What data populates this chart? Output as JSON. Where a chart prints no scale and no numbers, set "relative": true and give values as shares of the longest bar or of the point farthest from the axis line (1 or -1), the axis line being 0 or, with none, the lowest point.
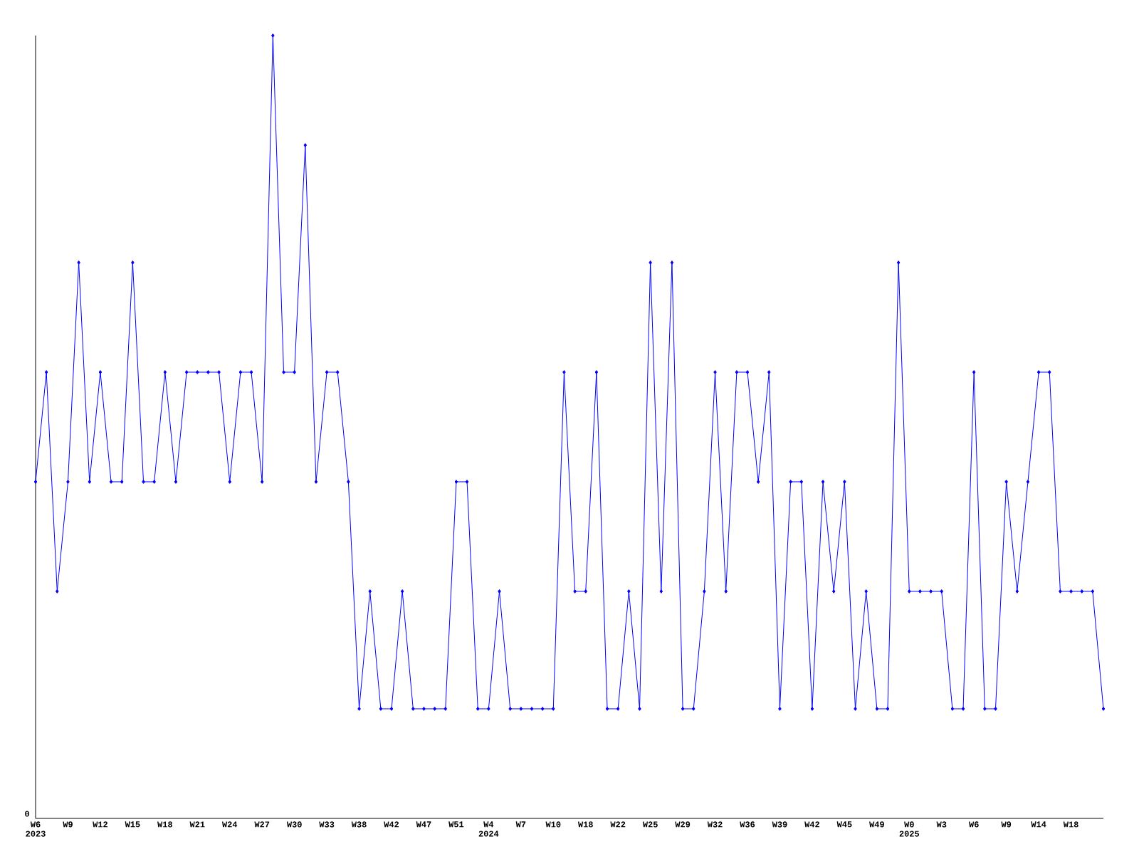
{
  "chart_data": {
    "type": "line",
    "relative": true,
    "color": "#0000ff",
    "marker": "diamond",
    "line_style": "solid",
    "grid": false,
    "categories": [
      "W6 2023",
      null,
      null,
      "W9",
      null,
      null,
      "W12",
      null,
      null,
      "W15",
      null,
      null,
      "W18",
      null,
      null,
      "W21",
      null,
      null,
      "W24",
      null,
      null,
      "W27",
      null,
      null,
      "W30",
      null,
      null,
      "W33",
      null,
      null,
      "W38",
      null,
      null,
      "W42",
      null,
      null,
      "W47",
      null,
      null,
      "W51",
      null,
      null,
      "W4 2024",
      null,
      null,
      "W7",
      null,
      null,
      "W10",
      null,
      null,
      "W18",
      null,
      null,
      "W22",
      null,
      null,
      "W25",
      null,
      null,
      "W29",
      null,
      null,
      "W32",
      null,
      null,
      "W36",
      null,
      null,
      "W39",
      null,
      null,
      "W42",
      null,
      null,
      "W45",
      null,
      null,
      "W49",
      null,
      null,
      "W0 2025",
      null,
      null,
      "W3",
      null,
      null,
      "W6",
      null,
      null,
      "W9",
      null,
      null,
      "W14",
      null,
      null,
      "W18",
      null,
      null,
      null
    ],
    "values": [
      0.43,
      0.57,
      0.29,
      0.43,
      0.71,
      0.43,
      0.57,
      0.43,
      0.43,
      0.71,
      0.43,
      0.43,
      0.57,
      0.43,
      0.57,
      0.57,
      0.57,
      0.57,
      0.43,
      0.57,
      0.57,
      0.43,
      1,
      0.57,
      0.57,
      0.86,
      0.43,
      0.57,
      0.57,
      0.43,
      0.14,
      0.29,
      0.14,
      0.14,
      0.29,
      0.14,
      0.14,
      0.14,
      0.14,
      0.43,
      0.43,
      0.14,
      0.14,
      0.29,
      0.14,
      0.14,
      0.14,
      0.14,
      0.14,
      0.57,
      0.29,
      0.29,
      0.57,
      0.14,
      0.14,
      0.29,
      0.14,
      0.71,
      0.29,
      0.71,
      0.14,
      0.14,
      0.29,
      0.57,
      0.29,
      0.57,
      0.57,
      0.43,
      0.57,
      0.14,
      0.43,
      0.43,
      0.14,
      0.43,
      0.29,
      0.43,
      0.14,
      0.29,
      0.14,
      0.14,
      0.71,
      0.29,
      0.29,
      0.29,
      0.29,
      0.14,
      0.14,
      0.57,
      0.14,
      0.14,
      0.43,
      0.29,
      0.43,
      0.57,
      0.57,
      0.29,
      0.29,
      0.29,
      0.29,
      0.14
    ],
    "annotations": [
      "0"
    ]
  }
}
